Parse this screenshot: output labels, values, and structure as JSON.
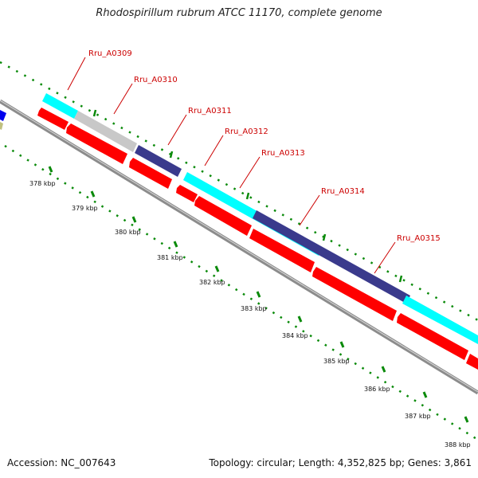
{
  "title": "Rhodospirillum rubrum ATCC 11170, complete genome",
  "footer": {
    "accession": "Accession: NC_007643",
    "summary": "Topology: circular; Length: 4,352,825 bp; Genes: 3,861"
  },
  "colors": {
    "forward_cds": "#00ffff",
    "reverse_cds": "#ff0000",
    "gray_feature": "#bfbfbf",
    "navy_feature": "#3a3a8c",
    "backbone": "#8c8c8c",
    "ticks": "#0a8a0a",
    "gene_label": "#cc0000"
  },
  "scale": {
    "unit": "kbp",
    "labels": [
      "378 kbp",
      "379 kbp",
      "380 kbp",
      "381 kbp",
      "382 kbp",
      "383 kbp",
      "384 kbp",
      "385 kbp",
      "386 kbp",
      "387 kbp",
      "388 kbp"
    ]
  },
  "genes": [
    {
      "label": "Rru_A0309"
    },
    {
      "label": "Rru_A0310"
    },
    {
      "label": "Rru_A0311"
    },
    {
      "label": "Rru_A0312"
    },
    {
      "label": "Rru_A0313"
    },
    {
      "label": "Rru_A0314"
    },
    {
      "label": "Rru_A0315"
    }
  ]
}
